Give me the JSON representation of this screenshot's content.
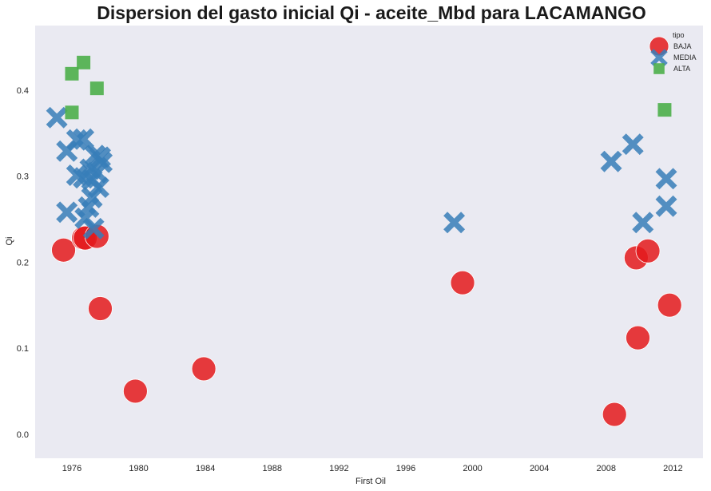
{
  "chart_data": {
    "type": "scatter",
    "title": "Dispersion del gasto inicial Qi -  aceite_Mbd para LACAMANGO",
    "xlabel": "First Oil",
    "ylabel": "Qi",
    "xlim": [
      1973.8,
      2013.8
    ],
    "ylim": [
      -0.028,
      0.475
    ],
    "xticks": [
      1976,
      1980,
      1984,
      1988,
      1992,
      1996,
      2000,
      2004,
      2008,
      2012
    ],
    "yticks": [
      0.0,
      0.1,
      0.2,
      0.3,
      0.4
    ],
    "grid": false,
    "background": "#eaeaf2",
    "legend": {
      "title": "tipo",
      "placement": "top-right",
      "entries": [
        "BAJA",
        "MEDIA",
        "ALTA"
      ]
    },
    "series": [
      {
        "name": "BAJA",
        "marker": "circle",
        "color": "#e41a1c",
        "points": [
          {
            "x": 1975.5,
            "y": 0.214
          },
          {
            "x": 1976.7,
            "y": 0.228
          },
          {
            "x": 1976.8,
            "y": 0.228
          },
          {
            "x": 1977.5,
            "y": 0.23
          },
          {
            "x": 1977.7,
            "y": 0.146
          },
          {
            "x": 1979.8,
            "y": 0.05
          },
          {
            "x": 1983.9,
            "y": 0.076
          },
          {
            "x": 1999.4,
            "y": 0.176
          },
          {
            "x": 2008.5,
            "y": 0.023
          },
          {
            "x": 2009.8,
            "y": 0.205
          },
          {
            "x": 2009.9,
            "y": 0.112
          },
          {
            "x": 2010.5,
            "y": 0.213
          },
          {
            "x": 2011.8,
            "y": 0.15
          }
        ]
      },
      {
        "name": "MEDIA",
        "marker": "x",
        "color": "#377eb8",
        "points": [
          {
            "x": 1975.1,
            "y": 0.368
          },
          {
            "x": 1975.7,
            "y": 0.329
          },
          {
            "x": 1975.7,
            "y": 0.258
          },
          {
            "x": 1976.3,
            "y": 0.342
          },
          {
            "x": 1976.3,
            "y": 0.301
          },
          {
            "x": 1976.7,
            "y": 0.343
          },
          {
            "x": 1976.7,
            "y": 0.298
          },
          {
            "x": 1976.8,
            "y": 0.251
          },
          {
            "x": 1977.0,
            "y": 0.264
          },
          {
            "x": 1977.1,
            "y": 0.308
          },
          {
            "x": 1977.2,
            "y": 0.296
          },
          {
            "x": 1977.2,
            "y": 0.275
          },
          {
            "x": 1977.3,
            "y": 0.239
          },
          {
            "x": 1977.4,
            "y": 0.324
          },
          {
            "x": 1977.5,
            "y": 0.304
          },
          {
            "x": 1977.6,
            "y": 0.287
          },
          {
            "x": 1977.7,
            "y": 0.322
          },
          {
            "x": 1977.8,
            "y": 0.316
          },
          {
            "x": 1998.9,
            "y": 0.246
          },
          {
            "x": 2008.3,
            "y": 0.317
          },
          {
            "x": 2009.6,
            "y": 0.337
          },
          {
            "x": 2010.2,
            "y": 0.246
          },
          {
            "x": 2011.6,
            "y": 0.297
          },
          {
            "x": 2011.6,
            "y": 0.265
          }
        ]
      },
      {
        "name": "ALTA",
        "marker": "square",
        "color": "#4daf4a",
        "points": [
          {
            "x": 1976.0,
            "y": 0.419
          },
          {
            "x": 1976.0,
            "y": 0.374
          },
          {
            "x": 1976.7,
            "y": 0.432
          },
          {
            "x": 1977.5,
            "y": 0.402
          },
          {
            "x": 2011.5,
            "y": 0.377
          }
        ]
      }
    ]
  }
}
